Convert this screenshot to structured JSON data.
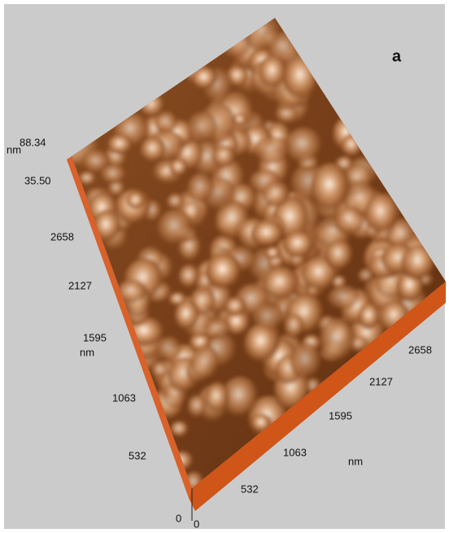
{
  "panel_label": "a",
  "z_axis": {
    "unit": "nm",
    "ticks": [
      "88.34",
      "35.50"
    ]
  },
  "y_axis": {
    "ticks": [
      "2658",
      "2127",
      "1595",
      "1063",
      "532",
      "0"
    ],
    "unit": "nm"
  },
  "x_axis": {
    "ticks": [
      "0",
      "532",
      "1063",
      "1595",
      "2127",
      "2658"
    ],
    "unit": "nm"
  }
}
